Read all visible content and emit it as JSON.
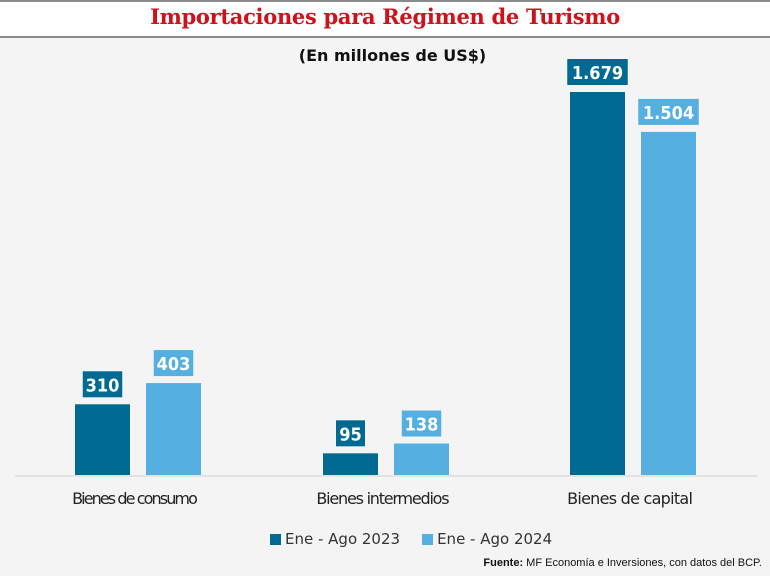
{
  "chart_data": {
    "type": "bar",
    "title": "Importaciones para Régimen de Turismo",
    "subtitle": "(En millones de US$)",
    "xlabel": "",
    "ylabel": "",
    "categories": [
      "Bienes de consumo",
      "Bienes intermedios",
      "Bienes de capital"
    ],
    "series": [
      {
        "name": "Ene - Ago 2023",
        "color": "#006a93",
        "values": [
          310,
          95,
          1679
        ],
        "labels": [
          "310",
          "95",
          "1.679"
        ]
      },
      {
        "name": "Ene - Ago 2024",
        "color": "#55b0e1",
        "values": [
          403,
          138,
          1504
        ],
        "labels": [
          "403",
          "138",
          "1.504"
        ]
      }
    ],
    "ylim": [
      0,
      1679
    ],
    "grid": false,
    "legend_position": "bottom"
  },
  "colors": {
    "title": "#d0101b",
    "baseline": "#dcdcdc",
    "background": "#f4f4f4"
  },
  "source": {
    "label": "Fuente:",
    "text": " MF Economía e Inversiones, con datos del BCP."
  }
}
